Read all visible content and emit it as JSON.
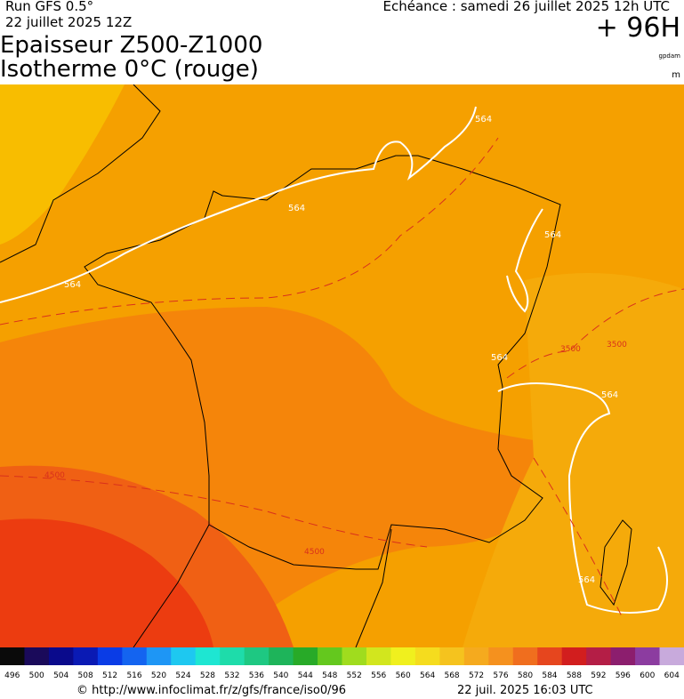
{
  "header": {
    "run": "Run GFS 0.5°",
    "run_date": "22 juillet 2025 12Z",
    "valid": "Echéance : samedi 26 juillet 2025 12h UTC",
    "lead": "+ 96H",
    "title_1": "Epaisseur Z500-Z1000",
    "title_2": "Isotherme 0°C (rouge)",
    "unit_1": "gpdam",
    "unit_2": "m"
  },
  "map": {
    "thickness_labels": [
      "564",
      "564",
      "564",
      "564",
      "564",
      "564",
      "564"
    ],
    "freezing_labels": [
      "3500",
      "3500",
      "4500",
      "4500"
    ]
  },
  "scale": {
    "labels": [
      496,
      500,
      504,
      508,
      512,
      516,
      520,
      524,
      528,
      532,
      536,
      540,
      544,
      548,
      552,
      556,
      560,
      564,
      568,
      572,
      576,
      580,
      584,
      588,
      592,
      596,
      600,
      604
    ],
    "colors": [
      "#0a0a0a",
      "#1a0a5a",
      "#0a0a8c",
      "#0a1ab4",
      "#0a3ce6",
      "#1464f0",
      "#1e96f5",
      "#1ec8f0",
      "#1ee6d2",
      "#1edcaa",
      "#1ec882",
      "#1eb45a",
      "#28aa28",
      "#64c81e",
      "#a0dc1e",
      "#d2e61e",
      "#f0f01e",
      "#f5dc1e",
      "#f5c31e",
      "#f5aa1e",
      "#f5911e",
      "#f06e1e",
      "#e6461e",
      "#d21e1e",
      "#b41e46",
      "#8c1e6e",
      "#8c3ca0",
      "#c8aadc"
    ]
  },
  "footer": {
    "url": "© http://www.infoclimat.fr/z/gfs/france/iso0/96",
    "generated": "22 juil. 2025 16:03 UTC"
  }
}
